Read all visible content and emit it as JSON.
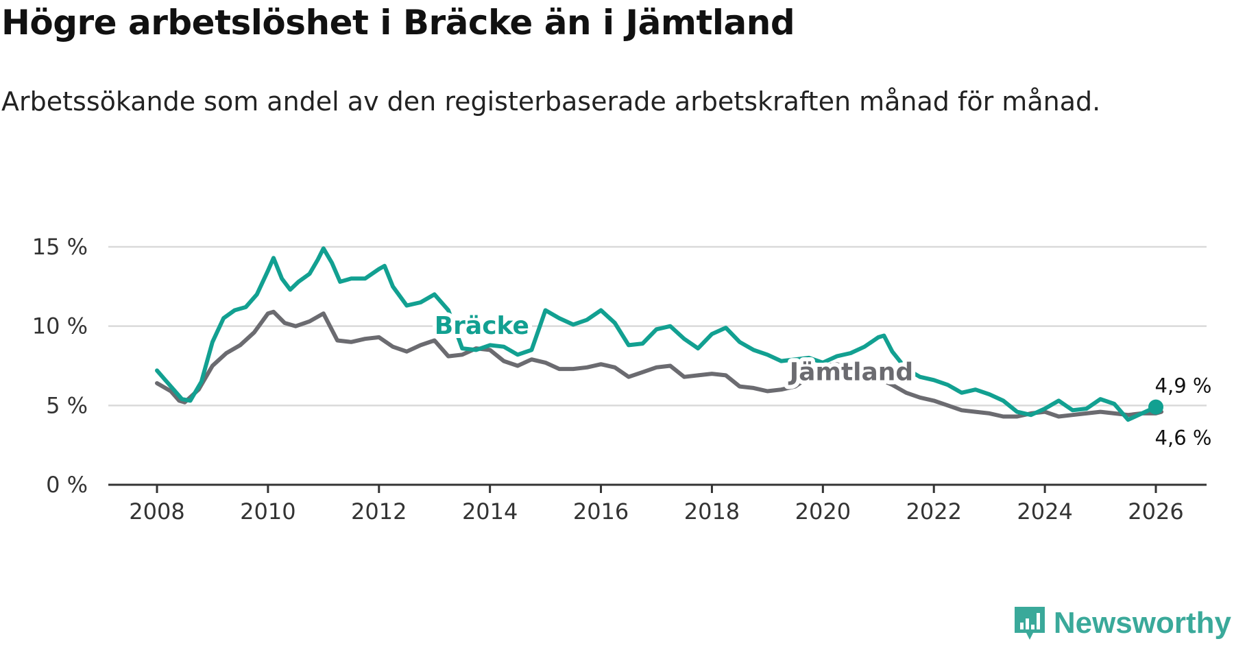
{
  "title": "Högre arbetslöshet i Bräcke än i Jämtland",
  "subtitle": "Arbetssökande som andel av den registerbaserade arbetskraften månad för månad.",
  "brand": {
    "name": "Newsworthy",
    "icon": "newsworthy-logo-icon",
    "color": "#3aa99a"
  },
  "chart_data": {
    "type": "line",
    "title": "Högre arbetslöshet i Bräcke än i Jämtland",
    "xlabel": "",
    "ylabel": "",
    "xlim": [
      2007.1,
      2027.0
    ],
    "ylim": [
      0,
      15
    ],
    "yticks": [
      0,
      5,
      10,
      15
    ],
    "ytick_labels": [
      "0 %",
      "5 %",
      "10 %",
      "15 %"
    ],
    "xticks": [
      2008,
      2010,
      2012,
      2014,
      2016,
      2018,
      2020,
      2022,
      2024,
      2026
    ],
    "xtick_labels": [
      "2008",
      "2010",
      "2012",
      "2014",
      "2016",
      "2018",
      "2020",
      "2022",
      "2024",
      "2026"
    ],
    "grid": true,
    "series": [
      {
        "name": "Jämtland",
        "color": "#6b6b70",
        "label_pos": {
          "x": 2019.4,
          "y": 6.6
        },
        "end_label": "4,6 %",
        "x": [
          2008.0,
          2008.25,
          2008.4,
          2008.5,
          2008.75,
          2009.0,
          2009.25,
          2009.5,
          2009.75,
          2010.0,
          2010.1,
          2010.3,
          2010.5,
          2010.75,
          2011.0,
          2011.25,
          2011.5,
          2011.75,
          2012.0,
          2012.25,
          2012.5,
          2012.75,
          2013.0,
          2013.25,
          2013.5,
          2013.75,
          2014.0,
          2014.25,
          2014.5,
          2014.75,
          2015.0,
          2015.25,
          2015.5,
          2015.75,
          2016.0,
          2016.25,
          2016.5,
          2016.75,
          2017.0,
          2017.25,
          2017.5,
          2017.75,
          2018.0,
          2018.25,
          2018.5,
          2018.75,
          2019.0,
          2019.25,
          2019.5,
          2019.75,
          2020.0,
          2020.25,
          2020.5,
          2020.75,
          2021.0,
          2021.25,
          2021.5,
          2021.75,
          2022.0,
          2022.25,
          2022.5,
          2022.75,
          2023.0,
          2023.25,
          2023.5,
          2023.75,
          2024.0,
          2024.25,
          2024.5,
          2024.75,
          2025.0,
          2025.25,
          2025.5,
          2025.75,
          2026.0,
          2026.1
        ],
        "values": [
          6.4,
          5.9,
          5.3,
          5.2,
          6.0,
          7.5,
          8.3,
          8.8,
          9.6,
          10.8,
          10.9,
          10.2,
          10.0,
          10.3,
          10.8,
          9.1,
          9.0,
          9.2,
          9.3,
          8.7,
          8.4,
          8.8,
          9.1,
          8.1,
          8.2,
          8.6,
          8.5,
          7.8,
          7.5,
          7.9,
          7.7,
          7.3,
          7.3,
          7.4,
          7.6,
          7.4,
          6.8,
          7.1,
          7.4,
          7.5,
          6.8,
          6.9,
          7.0,
          6.9,
          6.2,
          6.1,
          5.9,
          6.0,
          6.2,
          6.8,
          7.5,
          7.6,
          7.3,
          6.9,
          6.7,
          6.3,
          5.8,
          5.5,
          5.3,
          5.0,
          4.7,
          4.6,
          4.5,
          4.3,
          4.3,
          4.5,
          4.6,
          4.3,
          4.4,
          4.5,
          4.6,
          4.5,
          4.4,
          4.5,
          4.5,
          4.6
        ]
      },
      {
        "name": "Bräcke",
        "color": "#12a091",
        "label_pos": {
          "x": 2013.0,
          "y": 9.5
        },
        "end_label": "4,9 %",
        "x": [
          2008.0,
          2008.15,
          2008.3,
          2008.45,
          2008.6,
          2008.8,
          2009.0,
          2009.2,
          2009.4,
          2009.6,
          2009.8,
          2010.0,
          2010.1,
          2010.25,
          2010.4,
          2010.55,
          2010.75,
          2010.9,
          2011.0,
          2011.15,
          2011.3,
          2011.5,
          2011.75,
          2012.0,
          2012.1,
          2012.25,
          2012.5,
          2012.75,
          2013.0,
          2013.25,
          2013.5,
          2013.75,
          2014.0,
          2014.25,
          2014.5,
          2014.75,
          2015.0,
          2015.25,
          2015.5,
          2015.75,
          2016.0,
          2016.25,
          2016.5,
          2016.75,
          2017.0,
          2017.25,
          2017.5,
          2017.75,
          2018.0,
          2018.25,
          2018.5,
          2018.75,
          2019.0,
          2019.25,
          2019.5,
          2019.75,
          2020.0,
          2020.25,
          2020.5,
          2020.75,
          2021.0,
          2021.1,
          2021.25,
          2021.5,
          2021.75,
          2022.0,
          2022.25,
          2022.5,
          2022.75,
          2023.0,
          2023.25,
          2023.5,
          2023.75,
          2024.0,
          2024.25,
          2024.5,
          2024.75,
          2025.0,
          2025.25,
          2025.5,
          2025.75,
          2026.0
        ],
        "values": [
          7.2,
          6.6,
          6.0,
          5.4,
          5.3,
          6.5,
          9.0,
          10.5,
          11.0,
          11.2,
          12.0,
          13.5,
          14.3,
          13.0,
          12.3,
          12.8,
          13.3,
          14.2,
          14.9,
          14.0,
          12.8,
          13.0,
          13.0,
          13.6,
          13.8,
          12.5,
          11.3,
          11.5,
          12.0,
          11.0,
          8.6,
          8.5,
          8.8,
          8.7,
          8.2,
          8.5,
          11.0,
          10.5,
          10.1,
          10.4,
          11.0,
          10.2,
          8.8,
          8.9,
          9.8,
          10.0,
          9.2,
          8.6,
          9.5,
          9.9,
          9.0,
          8.5,
          8.2,
          7.8,
          7.9,
          8.0,
          7.7,
          8.1,
          8.3,
          8.7,
          9.3,
          9.4,
          8.4,
          7.3,
          6.8,
          6.6,
          6.3,
          5.8,
          6.0,
          5.7,
          5.3,
          4.6,
          4.4,
          4.8,
          5.3,
          4.7,
          4.8,
          5.4,
          5.1,
          4.1,
          4.5,
          4.9
        ]
      }
    ]
  }
}
